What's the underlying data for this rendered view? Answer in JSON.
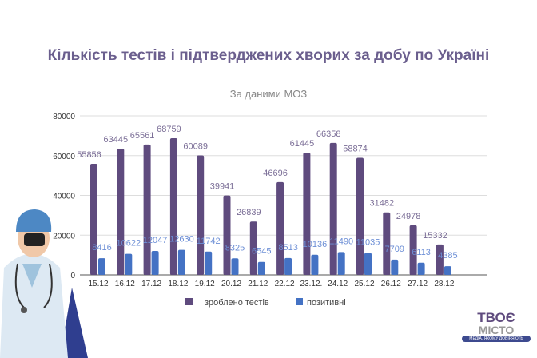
{
  "chart_data": {
    "type": "bar",
    "title": "Кількість тестів і підтверджених хворих за добу по Україні",
    "subtitle": "За даними МОЗ",
    "categories": [
      "15.12",
      "16.12",
      "17.12",
      "18.12",
      "19.12",
      "20.12",
      "21.12",
      "22.12",
      "23.12.",
      "24.12",
      "25.12",
      "26.12",
      "27.12",
      "28.12"
    ],
    "series": [
      {
        "name": "зроблено тестів",
        "color": "#5f4b7e",
        "values": [
          55856,
          63445,
          65561,
          68759,
          60089,
          39941,
          26839,
          46696,
          61445,
          66358,
          58874,
          31482,
          24978,
          15332
        ]
      },
      {
        "name": "позитивні",
        "color": "#4472c4",
        "values": [
          8416,
          10622,
          12047,
          12630,
          11742,
          8325,
          6545,
          8513,
          10136,
          11490,
          11035,
          7709,
          6113,
          4385
        ]
      }
    ],
    "ylim": [
      0,
      80000
    ],
    "yticks": [
      0,
      20000,
      40000,
      60000,
      80000
    ],
    "grid": true,
    "legend": "bottom"
  },
  "logo": {
    "line1": "ТВОЄ",
    "line2": "МІСТО",
    "tagline": "МЕДІА, ЯКОМУ ДОВІРЯЮТЬ"
  }
}
